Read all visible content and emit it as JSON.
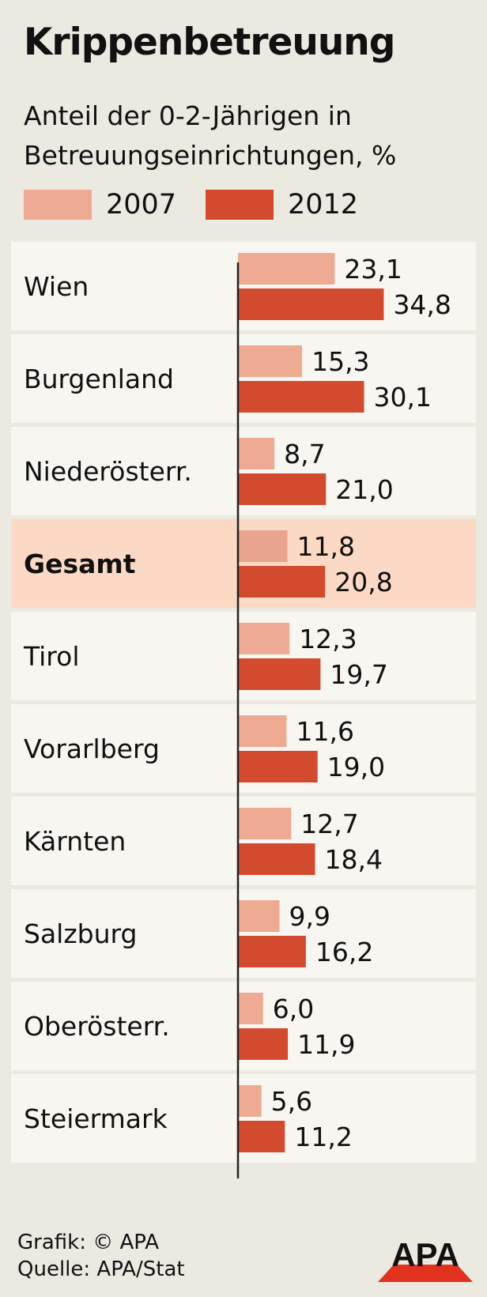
{
  "chart_data": {
    "type": "bar",
    "orientation": "horizontal",
    "title": "Krippenbetreuung",
    "subtitle": "Anteil der 0-2-Jährigen in Betreuungseinrichtungen, %",
    "categories": [
      "Wien",
      "Burgenland",
      "Niederösterr.",
      "Gesamt",
      "Tirol",
      "Vorarlberg",
      "Kärnten",
      "Salzburg",
      "Oberösterr.",
      "Steiermark"
    ],
    "highlight_category": "Gesamt",
    "series": [
      {
        "name": "2007",
        "color": "#eeaa93",
        "values": [
          23.1,
          15.3,
          8.7,
          11.8,
          12.3,
          11.6,
          12.7,
          9.9,
          6.0,
          5.6
        ],
        "labels": [
          "23,1",
          "15,3",
          "8,7",
          "11,8",
          "12,3",
          "11,6",
          "12,7",
          "9,9",
          "6,0",
          "5,6"
        ]
      },
      {
        "name": "2012",
        "color": "#d24b2f",
        "values": [
          34.8,
          30.1,
          21.0,
          20.8,
          19.7,
          19.0,
          18.4,
          16.2,
          11.9,
          11.2
        ],
        "labels": [
          "34,8",
          "30,1",
          "21,0",
          "20,8",
          "19,7",
          "19,0",
          "18,4",
          "16,2",
          "11,9",
          "11,2"
        ]
      }
    ],
    "xlim": [
      0,
      40
    ],
    "grid": false,
    "legend": "top-left"
  },
  "colors": {
    "background": "#ece9e1",
    "row_background": "#f8f6f1",
    "highlight_row": "#fcd9c4",
    "highlight_bar_2007": "#e9a48e",
    "axis": "#222222",
    "text": "#111111"
  },
  "footer": {
    "credit": "Grafik: © APA",
    "source": "Quelle: APA/Stat"
  },
  "logo": {
    "text": "APA"
  }
}
